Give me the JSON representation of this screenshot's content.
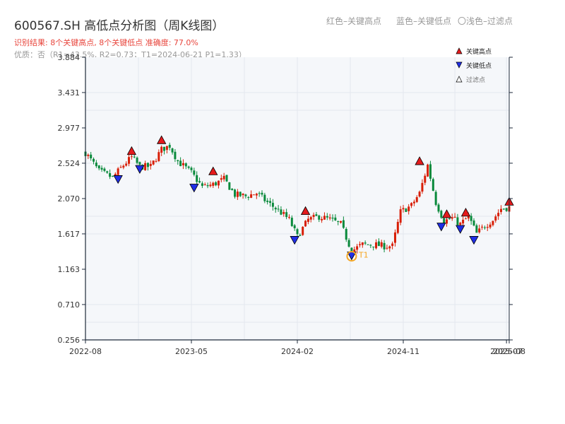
{
  "header": {
    "title": "600567.SH 高低点分析图（周K线图）",
    "result_text": "识别结果: 8个关键高点, 8个关键低点  准确度: 77.0%",
    "quality_text": "优质：否（R1=43.5%, R2=0.73；T1=2024-06-21 P1=1.33）",
    "legend_red": "红色–关键高点",
    "legend_blue": "蓝色–关键低点",
    "legend_light": "〇浅色–过滤点"
  },
  "colors": {
    "up": "#d81e06",
    "down": "#0a8a3c",
    "high_marker": "#e41a1c",
    "low_marker": "#1f2ee6",
    "t1_ring": "#f5a623",
    "plot_bg": "#f5f7fa",
    "grid": "#e3e7ee",
    "axis": "#1e2a3a"
  },
  "chart_data": {
    "type": "candlestick",
    "title": "600567.SH 高低点分析图（周K线图）",
    "ylim": [
      0.256,
      3.884
    ],
    "y_ticks": [
      "0.256",
      "0.710",
      "1.163",
      "1.617",
      "2.070",
      "2.524",
      "2.977",
      "3.431",
      "3.884"
    ],
    "x_ticks": [
      {
        "label": "2022-08",
        "date": "2022-08-05"
      },
      {
        "label": "2023-05",
        "date": "2023-05-05"
      },
      {
        "label": "2024-02",
        "date": "2024-02-02"
      },
      {
        "label": "2024-11",
        "date": "2024-11-01"
      },
      {
        "label": "2025-07",
        "date": "2025-07-25"
      },
      {
        "label": "2025-08",
        "date": "2025-08-01"
      }
    ],
    "x_range": [
      "2022-08-05",
      "2025-08-01"
    ],
    "grid": true,
    "legend": [
      {
        "label": "关键高点",
        "marker": "triangle-up"
      },
      {
        "label": "关键低点",
        "marker": "triangle-down"
      },
      {
        "label": "过滤点",
        "marker": "triangle-hollow"
      }
    ],
    "legend_position": "top-right",
    "close_path": [
      [
        "2022-08-05",
        2.66
      ],
      [
        "2022-09-09",
        2.42
      ],
      [
        "2022-10-14",
        2.34
      ],
      [
        "2022-11-11",
        2.5
      ],
      [
        "2022-12-02",
        2.6
      ],
      [
        "2022-12-23",
        2.48
      ],
      [
        "2023-01-20",
        2.48
      ],
      [
        "2023-02-17",
        2.7
      ],
      [
        "2023-03-10",
        2.75
      ],
      [
        "2023-03-31",
        2.55
      ],
      [
        "2023-05-05",
        2.4
      ],
      [
        "2023-06-02",
        2.22
      ],
      [
        "2023-06-30",
        2.25
      ],
      [
        "2023-07-28",
        2.32
      ],
      [
        "2023-08-25",
        2.12
      ],
      [
        "2023-09-22",
        2.1
      ],
      [
        "2023-10-20",
        2.14
      ],
      [
        "2023-11-17",
        2.02
      ],
      [
        "2023-12-15",
        1.92
      ],
      [
        "2024-01-12",
        1.8
      ],
      [
        "2024-02-02",
        1.58
      ],
      [
        "2024-03-01",
        1.8
      ],
      [
        "2024-03-29",
        1.84
      ],
      [
        "2024-04-26",
        1.8
      ],
      [
        "2024-05-24",
        1.74
      ],
      [
        "2024-06-21",
        1.4
      ],
      [
        "2024-07-19",
        1.48
      ],
      [
        "2024-08-16",
        1.48
      ],
      [
        "2024-09-13",
        1.46
      ],
      [
        "2024-10-04",
        1.46
      ],
      [
        "2024-10-25",
        1.9
      ],
      [
        "2024-11-22",
        1.98
      ],
      [
        "2024-12-13",
        2.14
      ],
      [
        "2025-01-03",
        2.5
      ],
      [
        "2025-01-24",
        2.02
      ],
      [
        "2025-02-14",
        1.78
      ],
      [
        "2025-03-07",
        1.82
      ],
      [
        "2025-03-28",
        1.74
      ],
      [
        "2025-04-18",
        1.84
      ],
      [
        "2025-05-09",
        1.62
      ],
      [
        "2025-05-30",
        1.72
      ],
      [
        "2025-06-20",
        1.8
      ],
      [
        "2025-07-11",
        1.94
      ],
      [
        "2025-08-01",
        1.96
      ]
    ],
    "key_highs": [
      {
        "date": "2022-12-02",
        "value": 2.68
      },
      {
        "date": "2023-02-17",
        "value": 2.82
      },
      {
        "date": "2023-06-30",
        "value": 2.42
      },
      {
        "date": "2024-02-23",
        "value": 1.91
      },
      {
        "date": "2024-12-13",
        "value": 2.55
      },
      {
        "date": "2025-02-21",
        "value": 1.87
      },
      {
        "date": "2025-04-11",
        "value": 1.89
      },
      {
        "date": "2025-08-01",
        "value": 2.03
      }
    ],
    "key_lows": [
      {
        "date": "2022-10-28",
        "value": 2.32
      },
      {
        "date": "2022-12-23",
        "value": 2.45
      },
      {
        "date": "2023-05-12",
        "value": 2.21
      },
      {
        "date": "2024-01-26",
        "value": 1.54
      },
      {
        "date": "2024-06-21",
        "value": 1.34
      },
      {
        "date": "2025-02-07",
        "value": 1.71
      },
      {
        "date": "2025-03-28",
        "value": 1.68
      },
      {
        "date": "2025-05-02",
        "value": 1.54
      }
    ],
    "annotation": {
      "label": "T1",
      "date": "2024-06-21",
      "value": 1.33
    }
  }
}
